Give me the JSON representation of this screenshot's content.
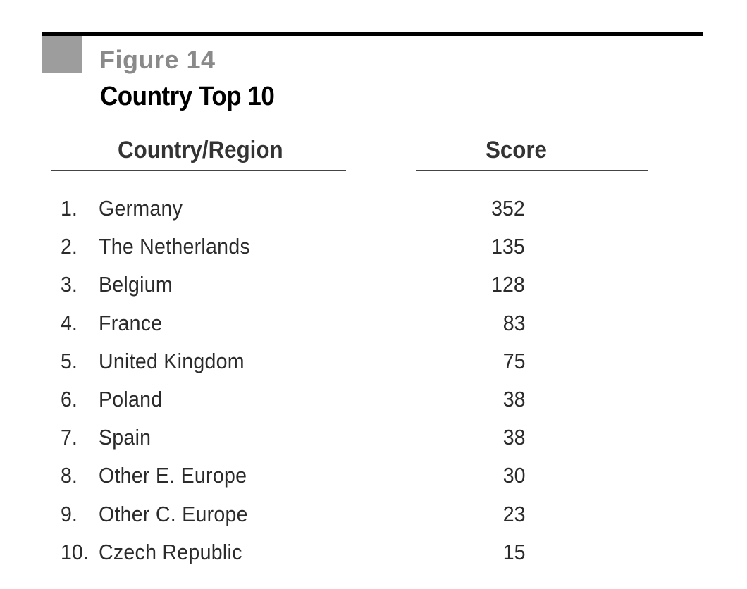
{
  "figure": {
    "label": "Figure 14",
    "title": "Country Top 10"
  },
  "colors": {
    "rule": "#000000",
    "corner_block": "#9d9d9d",
    "figure_label": "#8a8a8a",
    "text": "#2b2b2b"
  },
  "chart_data": {
    "type": "table",
    "title": "Country Top 10",
    "columns": [
      "Country/Region",
      "Score"
    ],
    "rows": [
      {
        "rank": "1.",
        "country": "Germany",
        "score": 352
      },
      {
        "rank": "2.",
        "country": "The Netherlands",
        "score": 135
      },
      {
        "rank": "3.",
        "country": "Belgium",
        "score": 128
      },
      {
        "rank": "4.",
        "country": "France",
        "score": 83
      },
      {
        "rank": "5.",
        "country": "United Kingdom",
        "score": 75
      },
      {
        "rank": "6.",
        "country": "Poland",
        "score": 38
      },
      {
        "rank": "7.",
        "country": "Spain",
        "score": 38
      },
      {
        "rank": "8.",
        "country": "Other E. Europe",
        "score": 30
      },
      {
        "rank": "9.",
        "country": "Other C. Europe",
        "score": 23
      },
      {
        "rank": "10.",
        "country": "Czech Republic",
        "score": 15
      }
    ]
  }
}
